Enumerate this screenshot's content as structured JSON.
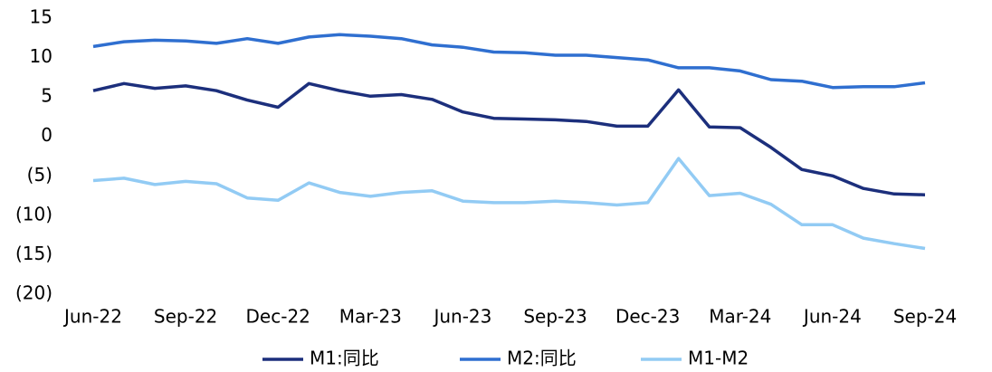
{
  "chart_data": {
    "type": "line",
    "categories": [
      "Jun-22",
      null,
      null,
      "Sep-22",
      null,
      null,
      "Dec-22",
      null,
      null,
      "Mar-23",
      null,
      null,
      "Jun-23",
      null,
      null,
      "Sep-23",
      null,
      null,
      "Dec-23",
      null,
      null,
      "Mar-24",
      null,
      null,
      "Jun-24",
      null,
      null,
      "Sep-24"
    ],
    "series": [
      {
        "name": "M1:同比",
        "color": "#1c2f7c",
        "values": [
          5.8,
          6.7,
          6.1,
          6.4,
          5.8,
          4.6,
          3.7,
          6.7,
          5.8,
          5.1,
          5.3,
          4.7,
          3.1,
          2.3,
          2.2,
          2.1,
          1.9,
          1.3,
          1.3,
          5.9,
          1.2,
          1.1,
          -1.4,
          -4.2,
          -5.0,
          -6.6,
          -7.3,
          -7.4
        ]
      },
      {
        "name": "M2:同比",
        "color": "#2f6fd0",
        "values": [
          11.4,
          12.0,
          12.2,
          12.1,
          11.8,
          12.4,
          11.8,
          12.6,
          12.9,
          12.7,
          12.4,
          11.6,
          11.3,
          10.7,
          10.6,
          10.3,
          10.3,
          10.0,
          9.7,
          8.7,
          8.7,
          8.3,
          7.2,
          7.0,
          6.2,
          6.3,
          6.3,
          6.8
        ]
      },
      {
        "name": "M1-M2",
        "color": "#92cbf4",
        "values": [
          -5.6,
          -5.3,
          -6.1,
          -5.7,
          -6.0,
          -7.8,
          -8.1,
          -5.9,
          -7.1,
          -7.6,
          -7.1,
          -6.9,
          -8.2,
          -8.4,
          -8.4,
          -8.2,
          -8.4,
          -8.7,
          -8.4,
          -2.8,
          -7.5,
          -7.2,
          -8.6,
          -11.2,
          -11.2,
          -12.9,
          -13.6,
          -14.2
        ]
      }
    ],
    "ylim": [
      -20,
      15
    ],
    "yticks": [
      15,
      10,
      5,
      0,
      {
        "value": -5,
        "label": "(5)"
      },
      {
        "value": -10,
        "label": "(10)"
      },
      {
        "value": -15,
        "label": "(15)"
      },
      {
        "value": -20,
        "label": "(20)"
      }
    ],
    "legend": "bottom"
  }
}
